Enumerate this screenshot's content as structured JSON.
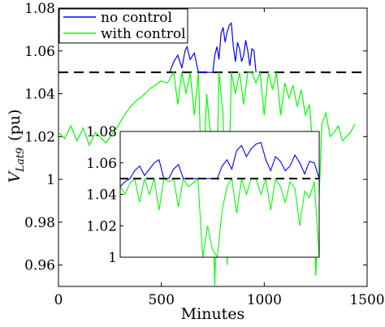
{
  "chart_data": [
    {
      "id": "main",
      "type": "line",
      "xlabel": "Minutes",
      "ylabel": {
        "base": "V",
        "subscript": "Lat9",
        "unit": "(pu)"
      },
      "xlim": [
        0,
        1500
      ],
      "ylim": [
        0.95,
        1.08
      ],
      "xticks": [
        0,
        500,
        1000,
        1500
      ],
      "yticks": [
        0.96,
        0.98,
        1,
        1.02,
        1.04,
        1.06,
        1.08
      ],
      "ytick_labels": [
        "0.96",
        "0.98",
        "1",
        "1.02",
        "1.04",
        "1.06",
        "1.08"
      ],
      "grid": false,
      "legend": "top-left",
      "reference_line": {
        "y": 1.05,
        "style": "dashed",
        "color": "#000000"
      },
      "series": [
        {
          "name": "no control",
          "color": "#0000ff",
          "x": [
            540,
            560,
            580,
            600,
            615,
            625,
            640,
            660,
            680,
            750,
            760,
            770,
            780,
            790,
            800,
            810,
            820,
            830,
            840,
            850,
            860,
            870,
            880,
            890,
            900,
            910,
            920,
            930,
            940,
            950,
            960
          ],
          "y": [
            1.05,
            1.055,
            1.058,
            1.052,
            1.06,
            1.062,
            1.056,
            1.059,
            1.05,
            1.05,
            1.058,
            1.062,
            1.056,
            1.068,
            1.071,
            1.064,
            1.069,
            1.072,
            1.073,
            1.062,
            1.055,
            1.064,
            1.061,
            1.055,
            1.058,
            1.065,
            1.06,
            1.053,
            1.061,
            1.06,
            1.05
          ]
        },
        {
          "name": "with control",
          "color": "#00ff00",
          "x": [
            0,
            30,
            60,
            90,
            120,
            150,
            180,
            200,
            230,
            260,
            290,
            320,
            350,
            380,
            410,
            440,
            470,
            500,
            530,
            560,
            580,
            600,
            620,
            640,
            660,
            680,
            700,
            720,
            740,
            760,
            780,
            800,
            820,
            840,
            860,
            880,
            900,
            920,
            940,
            960,
            980,
            1000,
            1020,
            1040,
            1060,
            1080,
            1100,
            1120,
            1140,
            1160,
            1180,
            1200,
            1220,
            1240,
            1250,
            1260,
            1280,
            1300,
            1320,
            1340,
            1360,
            1380,
            1400,
            1420,
            1440
          ],
          "y": [
            1.022,
            1.019,
            1.025,
            1.018,
            1.024,
            1.016,
            1.022,
            1.02,
            1.017,
            1.021,
            1.025,
            1.03,
            1.034,
            1.037,
            1.039,
            1.042,
            1.044,
            1.046,
            1.045,
            1.05,
            1.035,
            1.05,
            1.04,
            1.05,
            1.03,
            1.05,
            0.985,
            1.04,
            1.02,
            0.95,
            1.05,
            1.03,
            0.96,
            1.05,
            1.04,
            1.05,
            1.035,
            1.05,
            1.05,
            1.045,
            1.05,
            1.03,
            1.05,
            1.042,
            1.05,
            1.03,
            1.045,
            1.038,
            1.044,
            1.034,
            1.042,
            1.03,
            1.035,
            1.01,
            0.955,
            0.975,
            1.026,
            1.031,
            1.02,
            1.022,
            1.025,
            1.018,
            1.02,
            1.022,
            1.026
          ]
        }
      ]
    },
    {
      "id": "inset",
      "type": "line",
      "xlim": [
        550,
        960
      ],
      "ylim": [
        1.0,
        1.08
      ],
      "yticks": [
        1,
        1.02,
        1.04,
        1.06,
        1.08
      ],
      "ytick_labels": [
        "1",
        "1.02",
        "1.04",
        "1.06",
        "1.08"
      ],
      "xticks": [],
      "grid": false,
      "reference_line": {
        "y": 1.05,
        "style": "dashed",
        "color": "#000000"
      },
      "series": [
        {
          "color": "#0000ff",
          "x": [
            550,
            560,
            570,
            580,
            590,
            600,
            610,
            620,
            630,
            640,
            650,
            660,
            670,
            680,
            690,
            700,
            710,
            720,
            730,
            740,
            750,
            760,
            770,
            780,
            790,
            800,
            810,
            820,
            830,
            840,
            850,
            860,
            870,
            880,
            890,
            900,
            910,
            920,
            930,
            940,
            950,
            960
          ],
          "y": [
            1.045,
            1.048,
            1.05,
            1.055,
            1.058,
            1.052,
            1.056,
            1.06,
            1.062,
            1.05,
            1.05,
            1.056,
            1.059,
            1.05,
            1.05,
            1.05,
            1.05,
            1.05,
            1.05,
            1.05,
            1.05,
            1.058,
            1.062,
            1.056,
            1.068,
            1.071,
            1.064,
            1.069,
            1.072,
            1.073,
            1.062,
            1.055,
            1.064,
            1.061,
            1.055,
            1.058,
            1.065,
            1.06,
            1.053,
            1.061,
            1.06,
            1.05
          ]
        },
        {
          "color": "#00ff00",
          "x": [
            550,
            560,
            570,
            580,
            590,
            600,
            610,
            620,
            630,
            640,
            650,
            660,
            670,
            680,
            690,
            700,
            710,
            720,
            730,
            740,
            750,
            760,
            770,
            780,
            790,
            800,
            810,
            820,
            830,
            840,
            850,
            860,
            870,
            880,
            890,
            900,
            910,
            920,
            930,
            940,
            950,
            960
          ],
          "y": [
            1.045,
            1.04,
            1.047,
            1.05,
            1.035,
            1.05,
            1.04,
            1.05,
            1.03,
            1.05,
            1.048,
            1.05,
            1.032,
            1.05,
            1.045,
            1.047,
            1.05,
            1.0,
            1.02,
            1.005,
            1.0,
            1.03,
            1.045,
            1.05,
            1.028,
            1.05,
            1.04,
            1.05,
            1.05,
            1.04,
            1.05,
            1.03,
            1.05,
            1.045,
            1.035,
            1.048,
            1.044,
            1.02,
            1.042,
            1.038,
            1.048,
            1.0
          ]
        }
      ]
    }
  ]
}
